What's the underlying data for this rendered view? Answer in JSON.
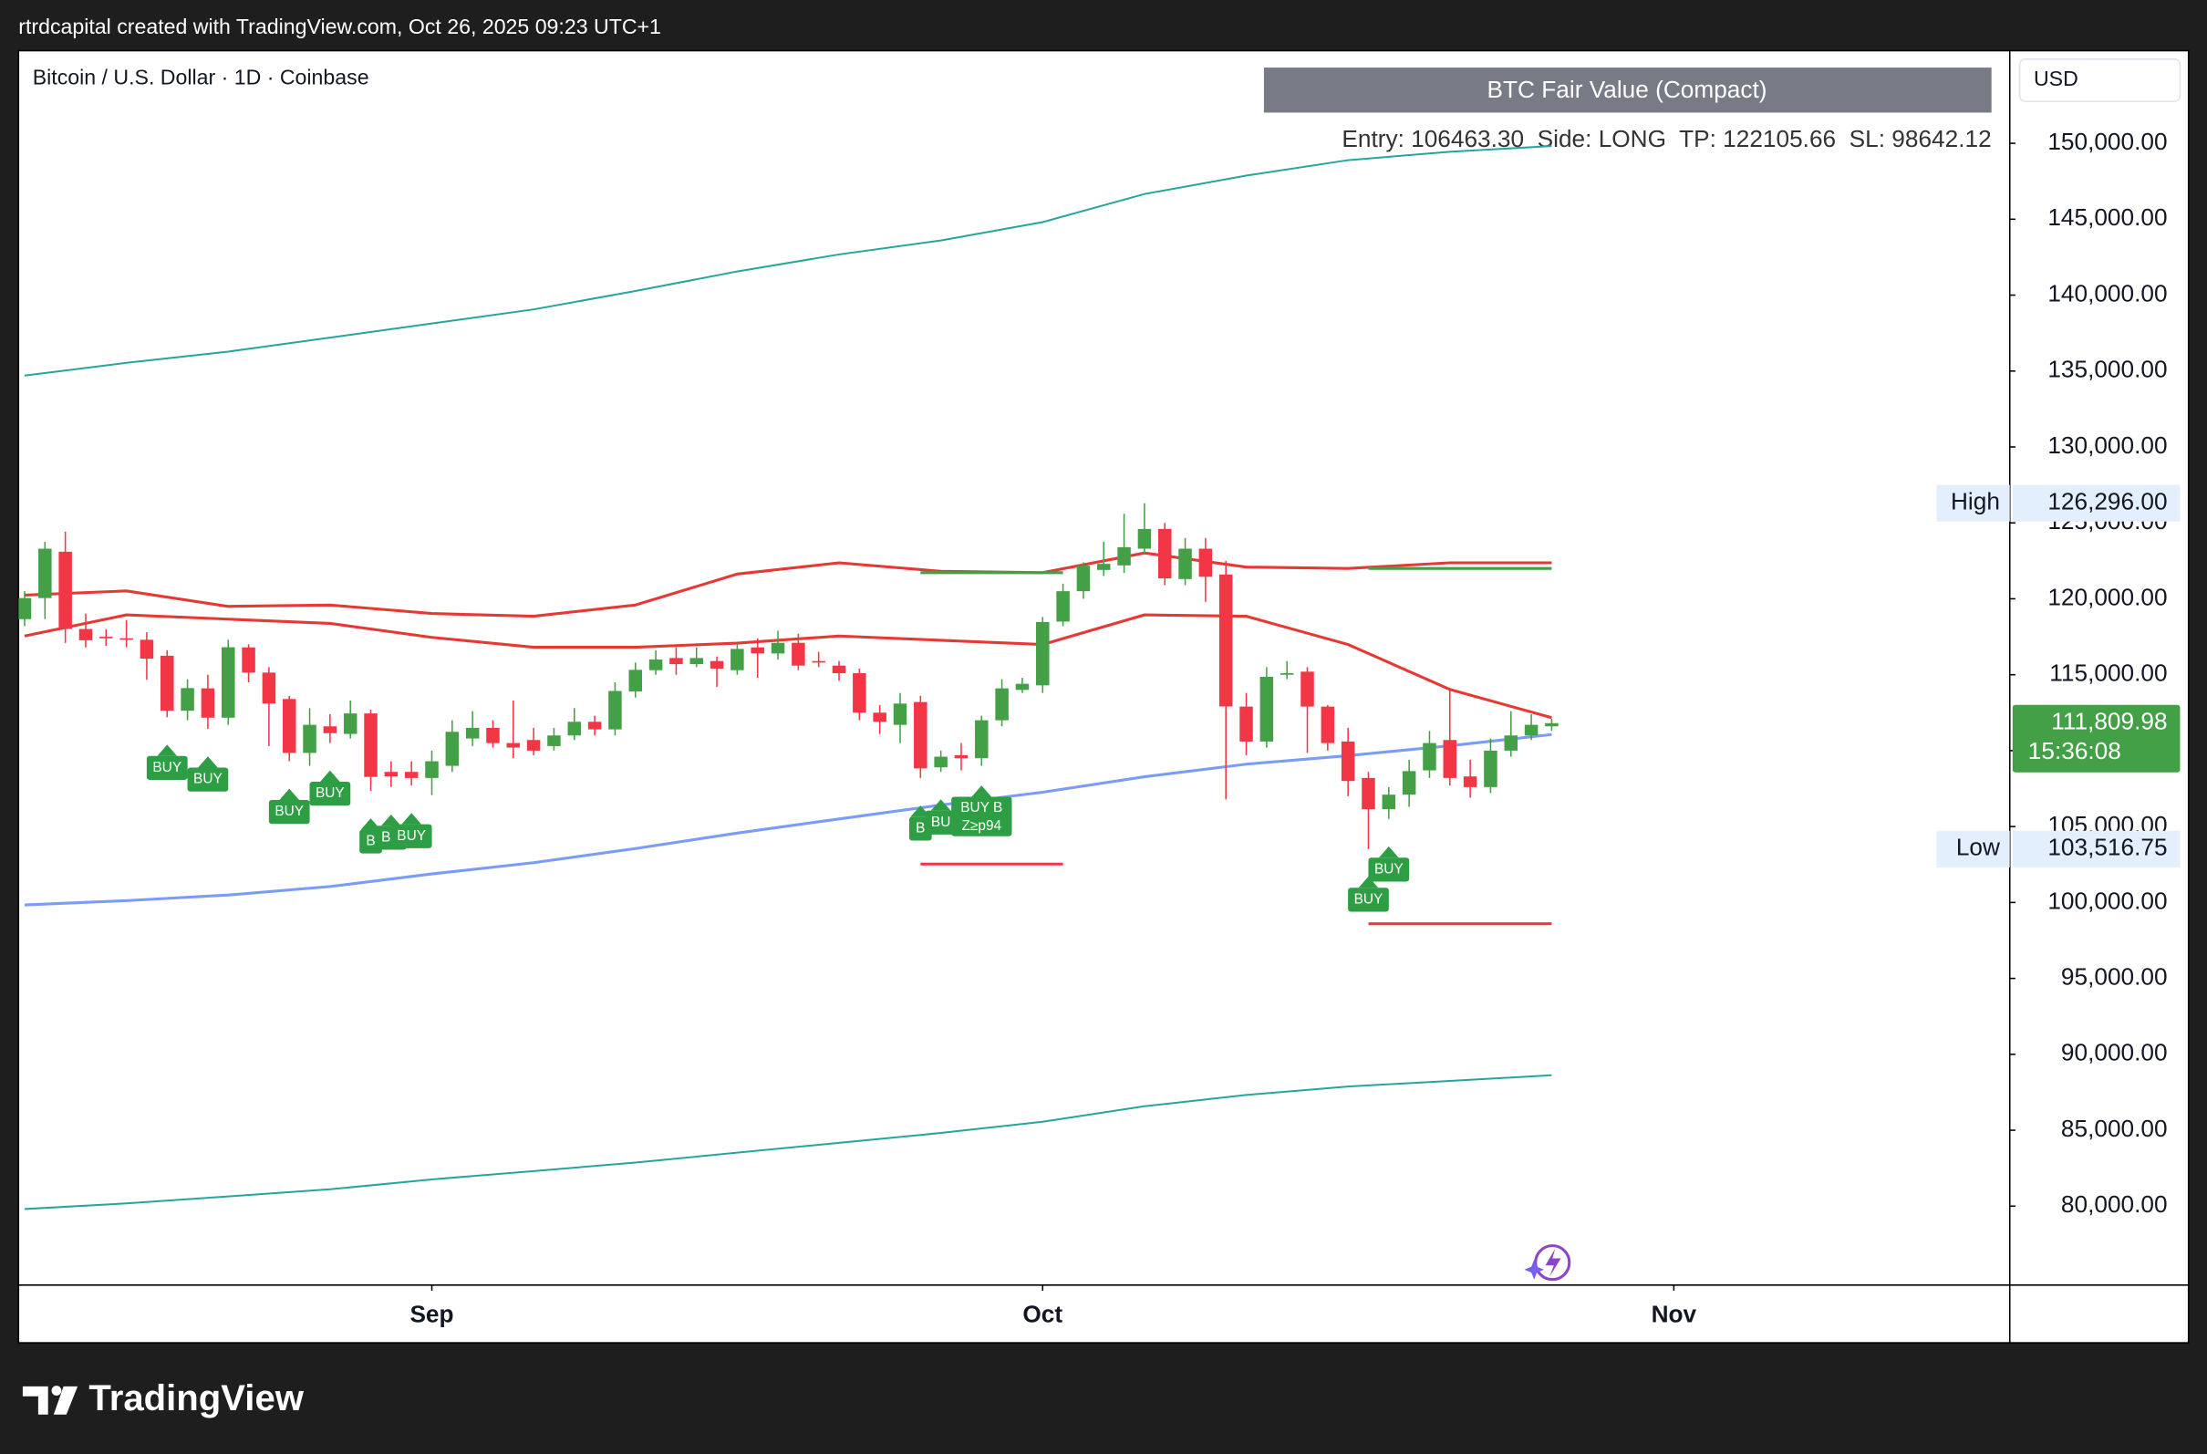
{
  "header": {
    "credit": "rtrdcapital created with TradingView.com, Oct 26, 2025 09:23 UTC+1",
    "brand": "TradingView"
  },
  "chart_data": {
    "type": "candlestick",
    "title": "Bitcoin / U.S. Dollar · 1D · Coinbase",
    "currency": "USD",
    "panel": {
      "title": "BTC Fair Value (Compact)",
      "info": "Entry: 106463.30  Side: LONG  TP: 122105.66  SL: 98642.12"
    },
    "up_color": "#43a047",
    "down_color": "#f23645",
    "open": [
      118660,
      120050,
      123100,
      118010,
      117500,
      117400,
      117300,
      116250,
      112630,
      114100,
      112170,
      116800,
      115140,
      113400,
      109850,
      111600,
      111100,
      112450,
      108600,
      108600,
      108200,
      109000,
      110800,
      111500,
      110500,
      110700,
      110300,
      111000,
      111900,
      111400,
      113900,
      115300,
      116100,
      115700,
      115900,
      115300,
      116800,
      116400,
      117100,
      115900,
      115600,
      115100,
      112500,
      111700,
      113200,
      108900,
      109700,
      109500,
      112000,
      114000,
      114300,
      118500,
      120500,
      121900,
      122200,
      123300,
      124600,
      121300,
      123300,
      121600,
      112900,
      110600,
      115000,
      115200,
      112900,
      110600,
      108200,
      106140,
      107100,
      108700,
      110700,
      108300,
      107600,
      110000,
      111000,
      111600
    ],
    "high": [
      120500,
      123760,
      124410,
      119030,
      118000,
      118600,
      117800,
      116620,
      114700,
      115000,
      117300,
      117000,
      115500,
      113600,
      112800,
      112400,
      113300,
      112700,
      109300,
      109300,
      110000,
      112000,
      112600,
      112000,
      113300,
      111500,
      111500,
      112800,
      112300,
      114500,
      115800,
      116600,
      116800,
      116800,
      116200,
      117000,
      117400,
      117900,
      117700,
      116500,
      115900,
      115400,
      113000,
      113800,
      113600,
      110000,
      110500,
      112300,
      114700,
      114800,
      118800,
      121000,
      122400,
      123760,
      125600,
      126296,
      125000,
      124000,
      124000,
      122500,
      113800,
      115500,
      115900,
      115500,
      113000,
      111500,
      108600,
      107600,
      109400,
      111300,
      114000,
      109400,
      110800,
      112600,
      112400,
      112100
    ],
    "low": [
      118200,
      118660,
      117090,
      116800,
      116900,
      116800,
      114670,
      112200,
      112000,
      111430,
      111700,
      114500,
      110300,
      109300,
      109000,
      110500,
      110800,
      107350,
      107600,
      107700,
      107070,
      108600,
      110300,
      110200,
      109500,
      109700,
      110000,
      110700,
      111000,
      111000,
      113500,
      115000,
      115000,
      115500,
      114200,
      115000,
      114800,
      116000,
      115300,
      115500,
      114600,
      112000,
      111100,
      110500,
      108200,
      108600,
      108700,
      109000,
      111600,
      113800,
      113800,
      118200,
      120000,
      121500,
      121700,
      122900,
      120900,
      120900,
      119800,
      106790,
      109700,
      110200,
      114700,
      109850,
      110000,
      107000,
      103516.75,
      105500,
      106300,
      108200,
      107700,
      106900,
      107200,
      109600,
      110700,
      111300
    ],
    "close": [
      120050,
      123300,
      118010,
      117270,
      117400,
      117300,
      116060,
      112630,
      114120,
      112170,
      116810,
      115140,
      113100,
      109850,
      111700,
      111150,
      112450,
      108270,
      108300,
      108200,
      109300,
      111240,
      111500,
      110500,
      110200,
      110000,
      111000,
      111900,
      111400,
      113930,
      115320,
      116000,
      115700,
      116100,
      115400,
      116700,
      116400,
      117100,
      115600,
      115800,
      115100,
      112500,
      111900,
      113100,
      108830,
      109600,
      109500,
      112000,
      114100,
      114400,
      118470,
      120500,
      122180,
      122300,
      123400,
      124600,
      121350,
      123300,
      121450,
      112910,
      110600,
      114860,
      115100,
      112900,
      110500,
      108000,
      106140,
      107100,
      108650,
      110500,
      108200,
      107600,
      110000,
      111000,
      111700,
      111810
    ],
    "indicators": [
      {
        "color": "#26a69a",
        "x": [
          0,
          5,
          10,
          15,
          20,
          25,
          30,
          35,
          40,
          45,
          50,
          55,
          60,
          65,
          70,
          75
        ],
        "values": [
          134700,
          135540,
          136280,
          137200,
          138130,
          139060,
          140270,
          141560,
          142680,
          143600,
          144810,
          146660,
          147870,
          148890,
          149440,
          149820
        ]
      },
      {
        "color": "#26a69a",
        "x": [
          0,
          5,
          10,
          15,
          20,
          25,
          30,
          35,
          40,
          45,
          50,
          55,
          60,
          65,
          70,
          75
        ],
        "values": [
          79810,
          80180,
          80640,
          81110,
          81760,
          82310,
          82870,
          83520,
          84170,
          84820,
          85560,
          86580,
          87320,
          87880,
          88250,
          88620
        ]
      },
      {
        "color": "#e53935",
        "x": [
          0,
          5,
          10,
          15,
          20,
          25,
          30,
          35,
          40,
          45,
          50,
          55,
          60,
          65,
          70,
          75
        ],
        "values": [
          120240,
          120520,
          119500,
          119590,
          119030,
          118850,
          119590,
          121630,
          122370,
          121810,
          121720,
          123020,
          122090,
          122000,
          122370,
          122370
        ]
      },
      {
        "color": "#e53935",
        "x": [
          0,
          5,
          10,
          15,
          20,
          25,
          30,
          35,
          40,
          45,
          50,
          55,
          60,
          65,
          70,
          75
        ],
        "values": [
          117550,
          118940,
          118660,
          118380,
          117460,
          116810,
          116810,
          117080,
          117550,
          117270,
          116990,
          118940,
          118850,
          116990,
          114030,
          112170
        ]
      },
      {
        "color": "#7b9cf5",
        "x": [
          0,
          5,
          10,
          15,
          20,
          25,
          30,
          35,
          40,
          45,
          50,
          55,
          60,
          65,
          70,
          75
        ],
        "values": [
          99840,
          100120,
          100490,
          101050,
          101880,
          102620,
          103550,
          104570,
          105500,
          106420,
          107260,
          108280,
          109110,
          109670,
          110320,
          111060
        ]
      }
    ],
    "levels": [
      {
        "color": "#43a047",
        "x": [
          44,
          51
        ],
        "value": 121720
      },
      {
        "color": "#43a047",
        "x": [
          66,
          75
        ],
        "value": 122000
      },
      {
        "color": "#f23645",
        "x": [
          44,
          51
        ],
        "value": 102530
      },
      {
        "color": "#f23645",
        "x": [
          66,
          75
        ],
        "value": 98600
      }
    ],
    "signals": [
      {
        "index": 7,
        "label": "BUY"
      },
      {
        "index": 9,
        "label": "BUY"
      },
      {
        "index": 13,
        "label": "BUY"
      },
      {
        "index": 15,
        "label": "BUY"
      },
      {
        "index": 17,
        "label": "B"
      },
      {
        "index": 18,
        "label": "BU"
      },
      {
        "index": 19,
        "label": "BUY"
      },
      {
        "index": 44,
        "label": "B"
      },
      {
        "index": 45,
        "label": "BU"
      },
      {
        "index": 47,
        "label": "BUY B",
        "sublabel": "Z≥p94"
      },
      {
        "index": 66,
        "label": "BUY"
      },
      {
        "index": 67,
        "label": "BUY"
      }
    ],
    "xlim": [
      -0.3,
      97.5
    ],
    "xticks": [
      {
        "value": 20,
        "label": "Sep"
      },
      {
        "value": 50,
        "label": "Oct"
      },
      {
        "value": 81,
        "label": "Nov"
      }
    ],
    "ylim": [
      74800,
      156100
    ],
    "yticks": [
      {
        "value": 80000,
        "label": "80,000.00"
      },
      {
        "value": 85000,
        "label": "85,000.00"
      },
      {
        "value": 90000,
        "label": "90,000.00"
      },
      {
        "value": 95000,
        "label": "95,000.00"
      },
      {
        "value": 100000,
        "label": "100,000.00"
      },
      {
        "value": 105000,
        "label": "105,000.00"
      },
      {
        "value": 110000,
        "label": "110,000.00"
      },
      {
        "value": 115000,
        "label": "115,000.00"
      },
      {
        "value": 120000,
        "label": "120,000.00"
      },
      {
        "value": 125000,
        "label": "125,000.00"
      },
      {
        "value": 130000,
        "label": "130,000.00"
      },
      {
        "value": 135000,
        "label": "135,000.00"
      },
      {
        "value": 140000,
        "label": "140,000.00"
      },
      {
        "value": 145000,
        "label": "145,000.00"
      },
      {
        "value": 150000,
        "label": "150,000.00"
      }
    ],
    "high_mark": {
      "name": "High",
      "value": 126296,
      "label": "126,296.00"
    },
    "low_mark": {
      "name": "Low",
      "value": 103516.75,
      "label": "103,516.75"
    },
    "last_price": {
      "value": 111809.98,
      "label": "111,809.98",
      "countdown": "15:36:08"
    }
  }
}
